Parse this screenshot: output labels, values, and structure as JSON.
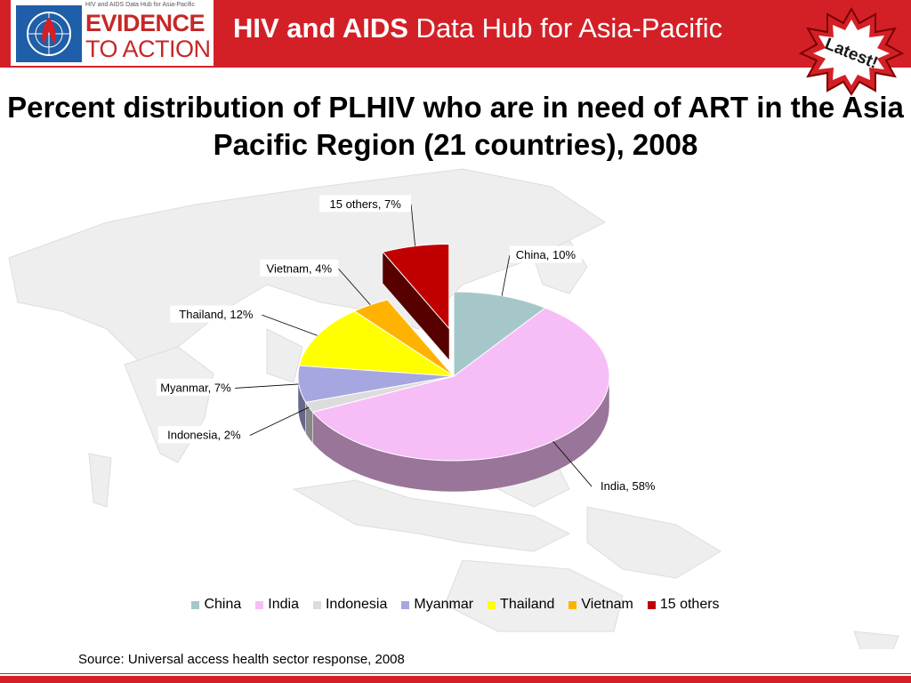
{
  "header": {
    "logo_tagline": "HIV and AIDS Data Hub for Asia-Pacific",
    "logo_line1": "EVIDENCE",
    "logo_line2": "TO ACTION",
    "hub_title_bold": "HIV and AIDS",
    "hub_title_rest": " Data Hub for Asia-Pacific",
    "badge": "Latest!"
  },
  "footer": {
    "source": "Source: Universal access health sector response, 2008"
  },
  "colors": {
    "header_red": "#d32027",
    "china": "#a6c7c9",
    "india": "#f7bdf7",
    "indonesia": "#dcdcdc",
    "myanmar": "#a6a6e0",
    "thailand": "#ffff00",
    "vietnam": "#ffb300",
    "others": "#c00000"
  },
  "chart_data": {
    "type": "pie",
    "title": "Percent distribution of PLHIV who are in need of ART in the Asia Pacific Region (21 countries), 2008",
    "categories": [
      "China",
      "India",
      "Indonesia",
      "Myanmar",
      "Thailand",
      "Vietnam",
      "15 others"
    ],
    "values": [
      10,
      58,
      2,
      7,
      12,
      4,
      7
    ],
    "data_labels": [
      "China, 10%",
      "India, 58%",
      "Indonesia, 2%",
      "Myanmar, 7%",
      "Thailand, 12%",
      "Vietnam, 4%",
      "15 others, 7%"
    ],
    "exploded": [
      "15 others"
    ],
    "legend": "bottom",
    "style": "3d"
  }
}
